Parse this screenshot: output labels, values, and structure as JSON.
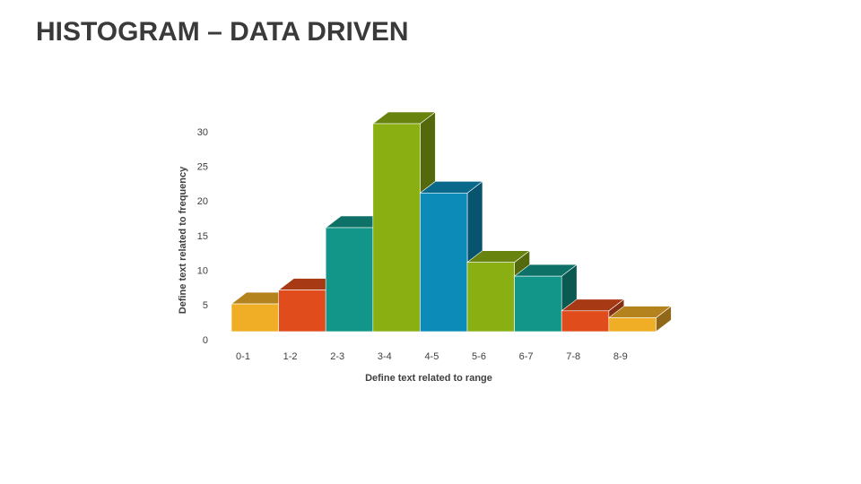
{
  "chart_data": {
    "type": "bar",
    "title": "HISTOGRAM – DATA DRIVEN",
    "x_label": "Define text related to range",
    "y_label": "Define text related to frequency",
    "categories": [
      "0-1",
      "1-2",
      "2-3",
      "3-4",
      "4-5",
      "5-6",
      "6-7",
      "7-8",
      "8-9"
    ],
    "values": [
      4,
      6,
      15,
      30,
      20,
      10,
      8,
      3,
      2
    ],
    "colors": [
      "#f0ae27",
      "#e04c1c",
      "#129689",
      "#8aaf12",
      "#0d8bb8",
      "#8aaf12",
      "#129689",
      "#e04c1c",
      "#f0ae27"
    ],
    "ylim": [
      0,
      30
    ],
    "yticks": [
      0,
      5,
      10,
      15,
      20,
      25,
      30
    ],
    "grid": false
  }
}
